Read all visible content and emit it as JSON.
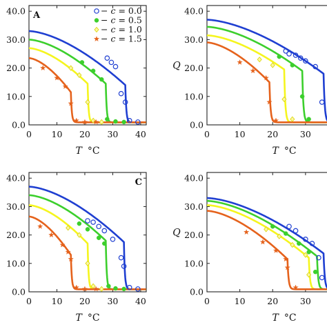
{
  "chart_data": [
    {
      "type": "line",
      "panel_label": "A",
      "xlabel_var": "T",
      "xlabel_unit": "°C",
      "ylabel": "",
      "xlim": [
        0,
        42
      ],
      "ylim": [
        0,
        42
      ],
      "x_ticks": [
        0,
        10,
        20,
        30,
        40
      ],
      "x_tick_labels": [
        "0",
        "10",
        "20",
        "30",
        "40"
      ],
      "y_ticks": [
        0,
        10,
        20,
        30,
        40
      ],
      "y_tick_labels": [
        "0.0",
        "10.0",
        "20.0",
        "30.0",
        "40.0"
      ],
      "legend_placement": "top-right",
      "legend": [
        {
          "var": "c",
          "value": "0.0"
        },
        {
          "var": "c",
          "value": "0.5"
        },
        {
          "var": "c",
          "value": "1.0"
        },
        {
          "var": "c",
          "value": "1.5"
        }
      ],
      "series": [
        {
          "color": "#1f3fd1",
          "marker": "circle",
          "tc": 34.5,
          "q0": 33.0,
          "qtc": 14.0,
          "points": [
            [
              28,
              23.5
            ],
            [
              29.5,
              22.0
            ],
            [
              31,
              20.5
            ],
            [
              33,
              11.0
            ],
            [
              34.5,
              8.0
            ],
            [
              36,
              1.5
            ],
            [
              39,
              1.0
            ]
          ]
        },
        {
          "color": "#3ccf2c",
          "marker": "dot",
          "tc": 27.5,
          "q0": 30.0,
          "qtc": 14.5,
          "points": [
            [
              19,
              22.0
            ],
            [
              23,
              19.0
            ],
            [
              26,
              16.0
            ],
            [
              28,
              2.0
            ],
            [
              31,
              1.2
            ],
            [
              34,
              1.0
            ]
          ]
        },
        {
          "color": "#f5f51e",
          "marker": "diamond",
          "tc": 21.0,
          "q0": 27.0,
          "qtc": 14.5,
          "points": [
            [
              15,
              20.0
            ],
            [
              18,
              17.5
            ],
            [
              21,
              8.0
            ],
            [
              23,
              1.5
            ],
            [
              26,
              1.0
            ]
          ]
        },
        {
          "color": "#e5621c",
          "marker": "star",
          "tc": 15.0,
          "q0": 23.5,
          "qtc": 11.5,
          "points": [
            [
              5,
              20.0
            ],
            [
              10,
              16.5
            ],
            [
              13,
              13.5
            ],
            [
              15,
              7.5
            ],
            [
              17,
              1.5
            ],
            [
              20,
              1.0
            ],
            [
              24,
              1.0
            ]
          ]
        }
      ]
    },
    {
      "type": "line",
      "panel_label": "",
      "xlabel_var": "T",
      "xlabel_unit": "°C",
      "ylabel": "Q",
      "xlim": [
        0,
        42
      ],
      "ylim": [
        0,
        42
      ],
      "x_ticks": [
        0,
        10,
        20,
        30
      ],
      "x_tick_labels": [
        "0",
        "10",
        "20",
        "30"
      ],
      "y_ticks": [
        0,
        10,
        20,
        30,
        40
      ],
      "y_tick_labels": [
        "0.0",
        "10.0",
        "20.0",
        "30.0",
        "40.0"
      ],
      "series": [
        {
          "color": "#1f3fd1",
          "marker": "circle",
          "tc": 35.5,
          "q0": 37.0,
          "qtc": 18.0,
          "points": [
            [
              24,
              26.0
            ],
            [
              25,
              25.0
            ],
            [
              27,
              24.5
            ],
            [
              28.5,
              23.5
            ],
            [
              30,
              22.5
            ],
            [
              33,
              20.5
            ],
            [
              35,
              8.0
            ]
          ]
        },
        {
          "color": "#3ccf2c",
          "marker": "dot",
          "tc": 29.0,
          "q0": 34.5,
          "qtc": 19.0,
          "points": [
            [
              22,
              24.0
            ],
            [
              26,
              21.0
            ],
            [
              29,
              10.0
            ],
            [
              31,
              2.0
            ]
          ]
        },
        {
          "color": "#f5f51e",
          "marker": "diamond",
          "tc": 23.5,
          "q0": 31.5,
          "qtc": 19.5,
          "points": [
            [
              16,
              23.0
            ],
            [
              20,
              21.0
            ],
            [
              23.5,
              9.0
            ],
            [
              26,
              2.0
            ]
          ]
        },
        {
          "color": "#e5621c",
          "marker": "star",
          "tc": 19.0,
          "q0": 29.0,
          "qtc": 15.0,
          "points": [
            [
              10,
              22.0
            ],
            [
              14,
              19.0
            ],
            [
              18,
              16.5
            ],
            [
              19,
              8.0
            ],
            [
              21,
              1.5
            ]
          ]
        }
      ]
    },
    {
      "type": "line",
      "panel_label": "C",
      "xlabel_var": "T",
      "xlabel_unit": "°C",
      "ylabel": "",
      "xlim": [
        0,
        42
      ],
      "ylim": [
        0,
        42
      ],
      "x_ticks": [
        0,
        10,
        20,
        30,
        40
      ],
      "x_tick_labels": [
        "0",
        "10",
        "20",
        "30",
        "40"
      ],
      "y_ticks": [
        0,
        10,
        20,
        30,
        40
      ],
      "y_tick_labels": [
        "0.0",
        "10.0",
        "20.0",
        "30.0",
        "40.0"
      ],
      "series": [
        {
          "color": "#1f3fd1",
          "marker": "circle",
          "tc": 34.0,
          "q0": 37.0,
          "qtc": 17.5,
          "points": [
            [
              21,
              25.0
            ],
            [
              23,
              24.5
            ],
            [
              25,
              23.0
            ],
            [
              27,
              21.5
            ],
            [
              30,
              18.5
            ],
            [
              33,
              12.0
            ],
            [
              34,
              9.0
            ],
            [
              36,
              1.5
            ],
            [
              39,
              1.0
            ]
          ]
        },
        {
          "color": "#3ccf2c",
          "marker": "dot",
          "tc": 27.5,
          "q0": 34.0,
          "qtc": 18.0,
          "points": [
            [
              18,
              24.0
            ],
            [
              21,
              22.0
            ],
            [
              25,
              19.0
            ],
            [
              27,
              17.0
            ],
            [
              28.5,
              2.0
            ],
            [
              31,
              1.2
            ],
            [
              34,
              1.0
            ]
          ]
        },
        {
          "color": "#f5f51e",
          "marker": "diamond",
          "tc": 21.0,
          "q0": 30.5,
          "qtc": 17.0,
          "points": [
            [
              14,
              22.5
            ],
            [
              18,
              20.0
            ],
            [
              21,
              10.0
            ],
            [
              23,
              2.0
            ],
            [
              26,
              1.0
            ]
          ]
        },
        {
          "color": "#e5621c",
          "marker": "star",
          "tc": 15.0,
          "q0": 26.5,
          "qtc": 13.0,
          "points": [
            [
              4,
              23.0
            ],
            [
              8,
              20.0
            ],
            [
              12,
              16.5
            ],
            [
              14,
              14.0
            ],
            [
              15,
              11.5
            ],
            [
              17,
              1.5
            ],
            [
              20,
              1.0
            ],
            [
              24,
              1.0
            ]
          ]
        }
      ]
    },
    {
      "type": "line",
      "panel_label": "",
      "xlabel_var": "T",
      "xlabel_unit": "°C",
      "ylabel": "Q",
      "xlim": [
        0,
        42
      ],
      "ylim": [
        0,
        42
      ],
      "x_ticks": [
        0,
        10,
        20,
        30
      ],
      "x_tick_labels": [
        "0",
        "10",
        "20",
        "30"
      ],
      "y_ticks": [
        0,
        10,
        20,
        30,
        40
      ],
      "y_tick_labels": [
        "0.0",
        "10.0",
        "20.0",
        "30.0",
        "40.0"
      ],
      "series": [
        {
          "color": "#1f3fd1",
          "marker": "circle",
          "tc": 35.5,
          "q0": 33.0,
          "qtc": 13.5,
          "points": [
            [
              25,
              23.0
            ],
            [
              27,
              21.5
            ],
            [
              30,
              18.5
            ],
            [
              32,
              17.0
            ],
            [
              34,
              12.0
            ],
            [
              35,
              5.0
            ]
          ]
        },
        {
          "color": "#3ccf2c",
          "marker": "dot",
          "tc": 33.5,
          "q0": 32.0,
          "qtc": 12.5,
          "points": [
            [
              20,
              23.0
            ],
            [
              24,
              20.5
            ],
            [
              28,
              17.0
            ],
            [
              31,
              14.0
            ],
            [
              33,
              7.0
            ]
          ]
        },
        {
          "color": "#f5f51e",
          "marker": "diamond",
          "tc": 31.0,
          "q0": 30.5,
          "qtc": 12.0,
          "points": [
            [
              18,
              22.0
            ],
            [
              22,
              19.5
            ],
            [
              26,
              16.5
            ],
            [
              30,
              13.0
            ],
            [
              31,
              6.0
            ]
          ]
        },
        {
          "color": "#e5621c",
          "marker": "star",
          "tc": 24.5,
          "q0": 28.5,
          "qtc": 11.5,
          "points": [
            [
              12,
              21.0
            ],
            [
              17,
              17.5
            ],
            [
              21,
              14.5
            ],
            [
              24,
              11.5
            ],
            [
              24.5,
              8.5
            ],
            [
              27,
              1.5
            ]
          ]
        }
      ]
    }
  ]
}
